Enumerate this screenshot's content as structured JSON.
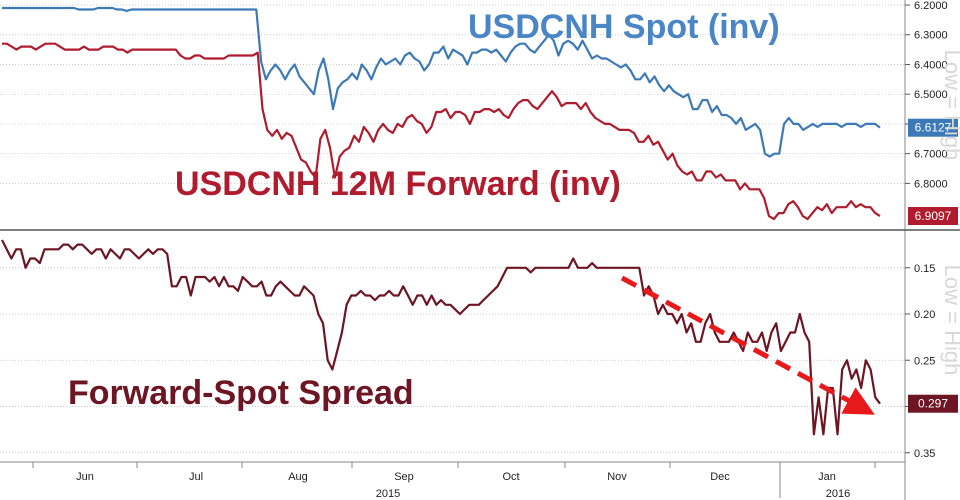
{
  "chart_data": [
    {
      "type": "line",
      "panel": "top",
      "y_inverted": true,
      "ylim": [
        6.2,
        6.95
      ],
      "y_ticks": [
        "6.2000",
        "6.3000",
        "6.4000",
        "6.5000",
        "6.6000",
        "6.7000",
        "6.8000"
      ],
      "grid": true,
      "series": [
        {
          "name": "USDCNH Spot (inv)",
          "color": "#3c79b7",
          "last_label": "6.6127",
          "values": [
            6.21,
            6.21,
            6.21,
            6.21,
            6.21,
            6.21,
            6.21,
            6.21,
            6.21,
            6.21,
            6.21,
            6.21,
            6.21,
            6.21,
            6.21,
            6.21,
            6.215,
            6.215,
            6.215,
            6.215,
            6.21,
            6.21,
            6.21,
            6.21,
            6.215,
            6.215,
            6.22,
            6.215,
            6.215,
            6.215,
            6.215,
            6.215,
            6.215,
            6.215,
            6.215,
            6.215,
            6.215,
            6.215,
            6.215,
            6.215,
            6.215,
            6.215,
            6.215,
            6.215,
            6.215,
            6.215,
            6.215,
            6.215,
            6.215,
            6.215,
            6.215,
            6.215,
            6.215,
            6.215,
            6.39,
            6.45,
            6.42,
            6.4,
            6.42,
            6.45,
            6.42,
            6.4,
            6.44,
            6.46,
            6.48,
            6.5,
            6.42,
            6.38,
            6.45,
            6.55,
            6.48,
            6.46,
            6.45,
            6.43,
            6.45,
            6.4,
            6.42,
            6.45,
            6.41,
            6.38,
            6.4,
            6.39,
            6.38,
            6.4,
            6.37,
            6.36,
            6.38,
            6.39,
            6.42,
            6.4,
            6.36,
            6.36,
            6.34,
            6.38,
            6.35,
            6.36,
            6.37,
            6.4,
            6.36,
            6.36,
            6.35,
            6.35,
            6.36,
            6.35,
            6.37,
            6.39,
            6.36,
            6.34,
            6.33,
            6.33,
            6.35,
            6.36,
            6.34,
            6.32,
            6.3,
            6.32,
            6.37,
            6.33,
            6.32,
            6.33,
            6.35,
            6.32,
            6.35,
            6.38,
            6.37,
            6.38,
            6.38,
            6.39,
            6.4,
            6.41,
            6.4,
            6.42,
            6.45,
            6.45,
            6.43,
            6.46,
            6.44,
            6.47,
            6.49,
            6.47,
            6.49,
            6.5,
            6.51,
            6.5,
            6.55,
            6.55,
            6.52,
            6.52,
            6.56,
            6.54,
            6.57,
            6.57,
            6.58,
            6.6,
            6.58,
            6.62,
            6.61,
            6.6,
            6.62,
            6.7,
            6.71,
            6.7,
            6.7,
            6.6,
            6.58,
            6.6,
            6.6,
            6.62,
            6.61,
            6.6,
            6.61,
            6.6,
            6.6,
            6.6,
            6.6,
            6.61,
            6.6,
            6.6,
            6.6,
            6.61,
            6.6,
            6.6,
            6.6,
            6.6127
          ]
        },
        {
          "name": "USDCNH 12M Forward (inv)",
          "color": "#b01c2e",
          "last_label": "6.9097",
          "values": [
            6.33,
            6.33,
            6.34,
            6.35,
            6.34,
            6.34,
            6.34,
            6.35,
            6.34,
            6.33,
            6.33,
            6.33,
            6.34,
            6.35,
            6.35,
            6.35,
            6.35,
            6.34,
            6.35,
            6.35,
            6.35,
            6.34,
            6.34,
            6.34,
            6.35,
            6.35,
            6.36,
            6.35,
            6.35,
            6.35,
            6.35,
            6.35,
            6.35,
            6.35,
            6.35,
            6.35,
            6.35,
            6.37,
            6.38,
            6.38,
            6.37,
            6.37,
            6.38,
            6.38,
            6.38,
            6.38,
            6.38,
            6.37,
            6.37,
            6.37,
            6.37,
            6.37,
            6.37,
            6.36,
            6.55,
            6.62,
            6.64,
            6.62,
            6.65,
            6.63,
            6.64,
            6.68,
            6.72,
            6.73,
            6.76,
            6.78,
            6.65,
            6.62,
            6.68,
            6.78,
            6.71,
            6.69,
            6.68,
            6.64,
            6.66,
            6.61,
            6.63,
            6.66,
            6.62,
            6.6,
            6.62,
            6.63,
            6.6,
            6.61,
            6.58,
            6.57,
            6.59,
            6.6,
            6.63,
            6.61,
            6.56,
            6.56,
            6.55,
            6.58,
            6.56,
            6.56,
            6.57,
            6.6,
            6.56,
            6.56,
            6.55,
            6.55,
            6.56,
            6.55,
            6.57,
            6.58,
            6.55,
            6.53,
            6.52,
            6.52,
            6.54,
            6.55,
            6.53,
            6.51,
            6.49,
            6.51,
            6.54,
            6.53,
            6.53,
            6.53,
            6.55,
            6.53,
            6.56,
            6.58,
            6.59,
            6.6,
            6.6,
            6.61,
            6.62,
            6.62,
            6.62,
            6.63,
            6.66,
            6.66,
            6.64,
            6.67,
            6.66,
            6.69,
            6.72,
            6.7,
            6.74,
            6.76,
            6.77,
            6.76,
            6.79,
            6.79,
            6.76,
            6.76,
            6.78,
            6.77,
            6.79,
            6.79,
            6.79,
            6.82,
            6.8,
            6.82,
            6.82,
            6.82,
            6.85,
            6.91,
            6.92,
            6.9,
            6.9,
            6.87,
            6.86,
            6.88,
            6.91,
            6.92,
            6.9,
            6.88,
            6.89,
            6.87,
            6.9,
            6.88,
            6.88,
            6.88,
            6.86,
            6.88,
            6.87,
            6.88,
            6.88,
            6.9,
            6.9097
          ]
        }
      ]
    },
    {
      "type": "line",
      "panel": "bottom",
      "y_inverted": true,
      "ylim": [
        0.12,
        0.36
      ],
      "y_ticks": [
        "0.15",
        "0.20",
        "0.25",
        "0.30",
        "0.35"
      ],
      "grid": true,
      "series": [
        {
          "name": "Forward-Spot Spread",
          "color": "#6e1524",
          "last_label": "0.297",
          "values": [
            0.12,
            0.13,
            0.14,
            0.13,
            0.13,
            0.15,
            0.14,
            0.14,
            0.145,
            0.13,
            0.13,
            0.13,
            0.13,
            0.125,
            0.125,
            0.13,
            0.125,
            0.125,
            0.13,
            0.135,
            0.13,
            0.13,
            0.14,
            0.13,
            0.135,
            0.14,
            0.13,
            0.13,
            0.135,
            0.14,
            0.135,
            0.13,
            0.135,
            0.13,
            0.13,
            0.135,
            0.17,
            0.17,
            0.16,
            0.16,
            0.18,
            0.16,
            0.16,
            0.16,
            0.165,
            0.16,
            0.17,
            0.16,
            0.17,
            0.17,
            0.175,
            0.16,
            0.165,
            0.17,
            0.17,
            0.165,
            0.18,
            0.18,
            0.17,
            0.165,
            0.17,
            0.175,
            0.18,
            0.18,
            0.17,
            0.175,
            0.18,
            0.2,
            0.21,
            0.25,
            0.26,
            0.24,
            0.22,
            0.19,
            0.18,
            0.18,
            0.175,
            0.18,
            0.18,
            0.185,
            0.18,
            0.18,
            0.175,
            0.18,
            0.18,
            0.17,
            0.18,
            0.19,
            0.18,
            0.18,
            0.19,
            0.18,
            0.19,
            0.185,
            0.19,
            0.19,
            0.195,
            0.2,
            0.195,
            0.19,
            0.19,
            0.19,
            0.185,
            0.18,
            0.175,
            0.17,
            0.16,
            0.15,
            0.15,
            0.15,
            0.15,
            0.15,
            0.155,
            0.15,
            0.15,
            0.15,
            0.15,
            0.15,
            0.15,
            0.15,
            0.15,
            0.14,
            0.15,
            0.15,
            0.15,
            0.145,
            0.15,
            0.15,
            0.15,
            0.15,
            0.15,
            0.15,
            0.15,
            0.15,
            0.15,
            0.15,
            0.18,
            0.17,
            0.18,
            0.2,
            0.19,
            0.2,
            0.2,
            0.21,
            0.2,
            0.22,
            0.21,
            0.23,
            0.23,
            0.21,
            0.2,
            0.22,
            0.23,
            0.23,
            0.23,
            0.22,
            0.23,
            0.24,
            0.22,
            0.23,
            0.23,
            0.22,
            0.24,
            0.22,
            0.21,
            0.24,
            0.23,
            0.22,
            0.22,
            0.2,
            0.22,
            0.23,
            0.33,
            0.29,
            0.33,
            0.28,
            0.28,
            0.33,
            0.26,
            0.25,
            0.27,
            0.26,
            0.28,
            0.25,
            0.26,
            0.29,
            0.297
          ]
        }
      ],
      "annotation": "downtrend-arrow"
    }
  ],
  "labels": {
    "spot_title": "USDCNH Spot (inv)",
    "forward_title": "USDCNH 12M Forward (inv)",
    "spread_title": "Forward-Spot Spread",
    "side_label_top": "Low = High",
    "side_label_bottom": "Low = High"
  },
  "x_axis": {
    "months": [
      "Jun",
      "Jul",
      "Aug",
      "Sep",
      "Oct",
      "Nov",
      "Dec",
      "Jan"
    ],
    "years": [
      "2015",
      "2016"
    ]
  },
  "colors": {
    "spot": "#3c79b7",
    "forward": "#b01c2e",
    "spread": "#6e1524",
    "arrow": "#e8191b",
    "grid": "#bbbbbb"
  }
}
